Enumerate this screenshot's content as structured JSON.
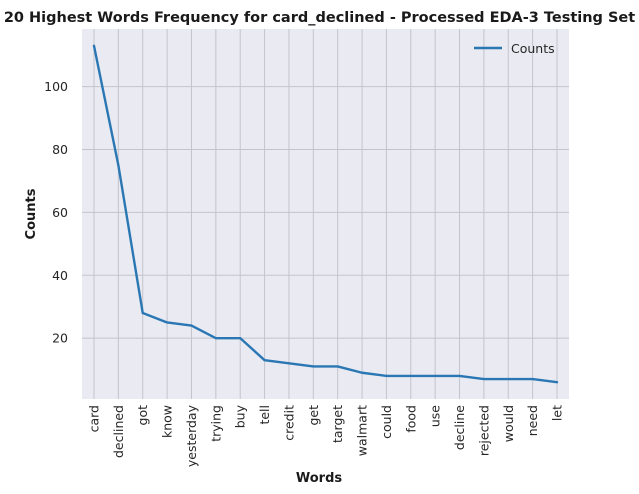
{
  "chart_data": {
    "type": "line",
    "title": "20 Highest Words Frequency for card_declined - Processed EDA-3 Testing Set",
    "xlabel": "Words",
    "ylabel": "Counts",
    "categories": [
      "card",
      "declined",
      "got",
      "know",
      "yesterday",
      "trying",
      "buy",
      "tell",
      "credit",
      "get",
      "target",
      "walmart",
      "could",
      "food",
      "use",
      "decline",
      "rejected",
      "would",
      "need",
      "let"
    ],
    "series": [
      {
        "name": "Counts",
        "values": [
          113,
          75,
          28,
          25,
          24,
          20,
          20,
          13,
          12,
          11,
          11,
          9,
          8,
          8,
          8,
          8,
          7,
          7,
          7,
          6
        ]
      }
    ],
    "yticks": [
      20,
      40,
      60,
      80,
      100
    ],
    "ylim": [
      0.65,
      118.35
    ],
    "grid": true,
    "legend_position": "top-right",
    "colors": {
      "line": "#2a77b4",
      "background": "#e9eaf2",
      "grid": "#c4c4cc"
    }
  }
}
